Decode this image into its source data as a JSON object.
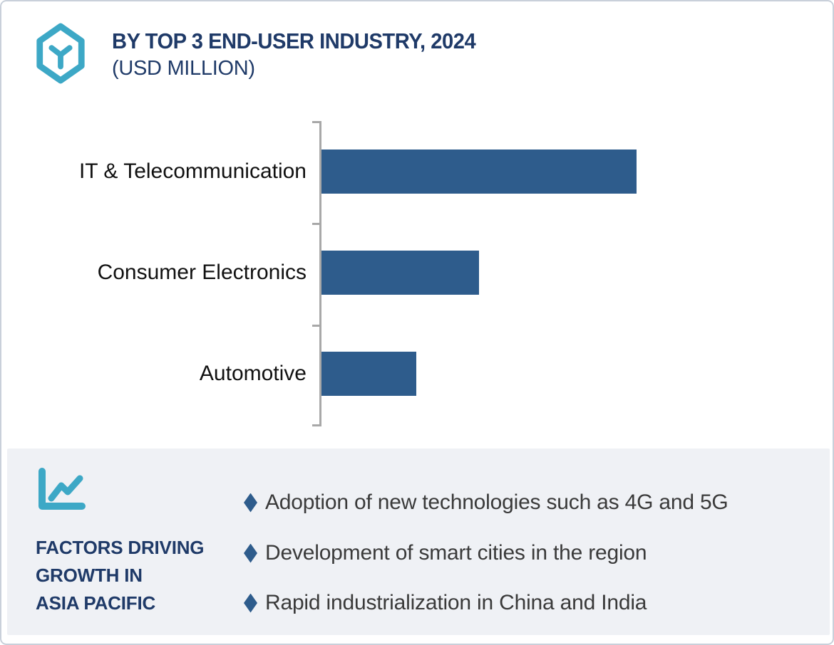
{
  "header": {
    "title": "BY TOP 3 END-USER INDUSTRY, 2024",
    "subtitle": "(USD MILLION)",
    "icon": "hexagon-cube-icon"
  },
  "chart_data": {
    "type": "bar",
    "orientation": "horizontal",
    "title": "BY TOP 3 END-USER INDUSTRY, 2024",
    "units": "USD Million",
    "categories": [
      "IT & Telecommunication",
      "Consumer Electronics",
      "Automotive"
    ],
    "values_pct_of_max": [
      100,
      50,
      30
    ],
    "value_axis_labels_visible": false,
    "data_labels_visible": false,
    "gridlines": false,
    "legend": "none"
  },
  "factors_panel": {
    "icon": "line-chart-icon",
    "heading_lines": [
      "FACTORS DRIVING",
      "GROWTH IN",
      "ASIA PACIFIC"
    ],
    "bullets": [
      "Adoption of new technologies such as 4G and 5G",
      "Development of smart cities in the region",
      "Rapid industrialization in China and India"
    ]
  },
  "colors": {
    "navy_heading": "#1f3a68",
    "teal_icon": "#3da8c6",
    "bar_fill": "#2e5c8c",
    "axis_gray": "#a8a8a8",
    "panel_background": "#eff1f5",
    "bullet_diamond": "#2e5c8c",
    "body_text": "#3a3a3a",
    "category_label": "#111111",
    "card_border": "#c9d0da"
  }
}
